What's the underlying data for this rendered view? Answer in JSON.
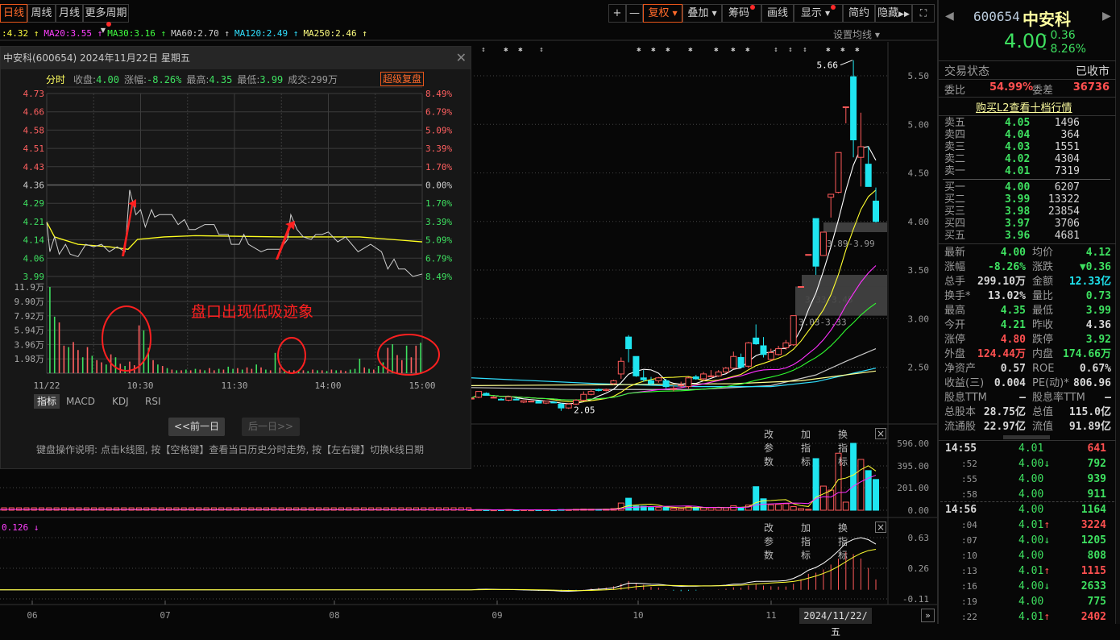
{
  "toolbar": {
    "periods": [
      "日线",
      "周线",
      "月线",
      "更多周期"
    ],
    "right": [
      "+",
      "—",
      "复权",
      "叠加",
      "筹码",
      "画线",
      "显示",
      "简约",
      "隐藏"
    ]
  },
  "ma_legend": [
    {
      "text": ":4.32",
      "color": "#ffff40"
    },
    {
      "text": "MA20:3.55",
      "color": "#ff40ff"
    },
    {
      "text": "MA30:3.16",
      "color": "#40ff40"
    },
    {
      "text": "MA60:2.70",
      "color": "#d0d0d0"
    },
    {
      "text": "MA120:2.49",
      "color": "#30e0ff"
    },
    {
      "text": "MA250:2.46",
      "color": "#ffff80"
    }
  ],
  "ma_setting": "设置均线",
  "main_chart": {
    "y_ticks": [
      5.5,
      5.0,
      4.5,
      4.0,
      3.5,
      3.0,
      2.5
    ],
    "high_label": "5.66",
    "low_label": "2.05",
    "candles": [
      [
        2.18,
        2.19,
        2.17,
        2.18
      ],
      [
        2.19,
        2.25,
        2.18,
        2.25
      ],
      [
        2.23,
        2.24,
        2.21,
        2.21
      ],
      [
        2.19,
        2.2,
        2.18,
        2.19
      ],
      [
        2.17,
        2.18,
        2.16,
        2.165
      ],
      [
        2.16,
        2.2,
        2.15,
        2.195
      ],
      [
        2.17,
        2.19,
        2.16,
        2.165
      ],
      [
        2.14,
        2.16,
        2.13,
        2.155
      ],
      [
        2.15,
        2.155,
        2.14,
        2.15
      ],
      [
        2.15,
        2.155,
        2.13,
        2.13
      ],
      [
        2.13,
        2.15,
        2.12,
        2.15
      ],
      [
        2.14,
        2.15,
        2.13,
        2.135
      ],
      [
        2.12,
        2.13,
        2.05,
        2.08
      ],
      [
        2.08,
        2.13,
        2.07,
        2.12
      ],
      [
        2.12,
        2.17,
        2.11,
        2.16
      ],
      [
        2.16,
        2.25,
        2.15,
        2.22
      ],
      [
        2.22,
        2.27,
        2.21,
        2.25
      ],
      [
        2.27,
        2.28,
        2.25,
        2.26
      ],
      [
        2.26,
        2.28,
        2.25,
        2.27
      ],
      [
        2.33,
        2.37,
        2.32,
        2.36
      ],
      [
        2.43,
        2.6,
        2.38,
        2.56
      ],
      [
        2.81,
        2.83,
        2.55,
        2.69
      ],
      [
        2.61,
        2.61,
        2.4,
        2.41
      ],
      [
        2.39,
        2.47,
        2.35,
        2.37
      ],
      [
        2.36,
        2.4,
        2.32,
        2.33
      ],
      [
        2.36,
        2.4,
        2.34,
        2.39
      ],
      [
        2.36,
        2.38,
        2.28,
        2.3
      ],
      [
        2.28,
        2.31,
        2.25,
        2.28
      ],
      [
        2.31,
        2.35,
        2.29,
        2.315
      ],
      [
        2.3,
        2.4,
        2.28,
        2.39
      ],
      [
        2.4,
        2.42,
        2.37,
        2.38
      ],
      [
        2.38,
        2.45,
        2.36,
        2.43
      ],
      [
        2.41,
        2.47,
        2.4,
        2.41
      ],
      [
        2.41,
        2.47,
        2.4,
        2.45
      ],
      [
        2.45,
        2.5,
        2.44,
        2.49
      ],
      [
        2.49,
        2.66,
        2.48,
        2.61
      ],
      [
        2.6,
        2.64,
        2.49,
        2.5
      ],
      [
        2.51,
        2.76,
        2.49,
        2.75
      ],
      [
        2.8,
        2.94,
        2.73,
        2.74
      ],
      [
        2.72,
        2.81,
        2.6,
        2.63
      ],
      [
        2.58,
        2.69,
        2.56,
        2.65
      ],
      [
        2.63,
        2.72,
        2.62,
        2.69
      ],
      [
        2.7,
        2.78,
        2.68,
        2.75
      ],
      [
        2.73,
        3.03,
        2.72,
        3.03
      ],
      [
        3.33,
        3.33,
        3.33,
        3.33
      ],
      [
        3.66,
        3.66,
        3.66,
        3.66
      ],
      [
        4.03,
        4.03,
        3.45,
        3.54
      ],
      [
        3.65,
        3.89,
        3.65,
        3.89
      ],
      [
        4.25,
        4.28,
        4.04,
        4.28
      ],
      [
        4.3,
        4.71,
        4.29,
        4.71
      ],
      [
        5.18,
        5.18,
        5.01,
        5.18
      ],
      [
        5.49,
        5.66,
        4.66,
        4.84
      ],
      [
        4.66,
        5.12,
        4.36,
        4.77
      ],
      [
        4.59,
        4.77,
        4.36,
        4.36
      ],
      [
        4.21,
        4.35,
        3.99,
        4.0
      ]
    ],
    "long_ma": [
      {
        "name": "MA60",
        "color": "#c8c8c8",
        "points": [
          [
            0,
            2.29
          ],
          [
            15,
            2.27
          ],
          [
            30,
            2.27
          ],
          [
            40,
            2.31
          ],
          [
            46,
            2.42
          ],
          [
            50,
            2.56
          ],
          [
            54,
            2.69
          ]
        ]
      },
      {
        "name": "MA120",
        "color": "#30e0ff",
        "points": [
          [
            0,
            2.39
          ],
          [
            17,
            2.33
          ],
          [
            30,
            2.3
          ],
          [
            40,
            2.3
          ],
          [
            46,
            2.35
          ],
          [
            50,
            2.42
          ],
          [
            54,
            2.49
          ]
        ]
      },
      {
        "name": "MA250",
        "color": "#ffff90",
        "points": [
          [
            0,
            2.31
          ],
          [
            20,
            2.32
          ],
          [
            35,
            2.33
          ],
          [
            44,
            2.36
          ],
          [
            50,
            2.42
          ],
          [
            54,
            2.46
          ]
        ]
      }
    ],
    "zones": [
      {
        "label": "3.89-3.99",
        "lo": 3.89,
        "hi": 3.99
      },
      {
        "label": "3.33-3.45",
        "lo": 3.33,
        "hi": 3.45
      },
      {
        "label": "3.03-3.33",
        "lo": 3.03,
        "hi": 3.33
      }
    ],
    "x_labels": [
      "06",
      "07",
      "08",
      "09",
      "10",
      "11"
    ],
    "cursor_date": "2024/11/22/五"
  },
  "volume_panel": {
    "y_ticks": [
      "596.00",
      "395.00",
      "201.00",
      "0.00"
    ],
    "max": 596,
    "values": [
      4,
      5,
      4,
      3,
      4,
      5,
      3,
      4,
      3,
      4,
      4,
      3,
      6,
      5,
      8,
      10,
      9,
      8,
      10,
      14,
      64,
      107,
      38,
      36,
      24,
      24,
      26,
      18,
      16,
      32,
      26,
      24,
      22,
      24,
      22,
      40,
      24,
      46,
      210,
      102,
      48,
      52,
      58,
      32,
      14,
      8,
      460,
      215,
      179,
      508,
      72,
      596,
      453,
      353,
      274
    ]
  },
  "macd_panel": {
    "y_ticks": [
      "0.63",
      "0.26",
      "-0.11"
    ],
    "legend": "0.126 ↓"
  },
  "panel_tools": [
    "改参数",
    "加指标",
    "换指标"
  ],
  "popup": {
    "title": "中安科(600654) 2024年11月22日 星期五",
    "tab": "分时",
    "stats": [
      {
        "k": "收盘:",
        "v": "4.00"
      },
      {
        "k": "涨幅:",
        "v": "-8.26%"
      },
      {
        "k": "最高:",
        "v": "4.35"
      },
      {
        "k": "最低:",
        "v": "3.99"
      },
      {
        "k": "成交:",
        "v": "299万",
        "plain": true
      }
    ],
    "review_btn": "超级复盘",
    "price_ticks": [
      "4.73",
      "4.66",
      "4.58",
      "4.51",
      "4.43",
      "4.36",
      "4.29",
      "4.21",
      "4.14",
      "4.06",
      "3.99"
    ],
    "pct_ticks": [
      "8.49%",
      "6.79%",
      "5.09%",
      "3.39%",
      "1.70%",
      "0.00%",
      "1.70%",
      "3.39%",
      "5.09%",
      "6.79%",
      "8.49%"
    ],
    "vol_ticks": [
      "11.9万",
      "9.90万",
      "7.92万",
      "5.94万",
      "3.96万",
      "1.98万"
    ],
    "time_labels": [
      "11/22",
      "10:30",
      "11:30",
      "14:00",
      "15:00"
    ],
    "prev_close": 4.36,
    "price": [
      [
        0,
        4.21
      ],
      [
        2,
        4.09
      ],
      [
        5,
        4.15
      ],
      [
        8,
        4.08
      ],
      [
        12,
        4.12
      ],
      [
        15,
        4.08
      ],
      [
        20,
        4.07
      ],
      [
        25,
        4.12
      ],
      [
        30,
        4.11
      ],
      [
        35,
        4.12
      ],
      [
        40,
        4.09
      ],
      [
        45,
        4.11
      ],
      [
        50,
        4.09
      ],
      [
        53,
        4.34
      ],
      [
        55,
        4.29
      ],
      [
        57,
        4.24
      ],
      [
        60,
        4.26
      ],
      [
        63,
        4.19
      ],
      [
        67,
        4.26
      ],
      [
        69,
        4.23
      ],
      [
        72,
        4.24
      ],
      [
        80,
        4.24
      ],
      [
        84,
        4.2
      ],
      [
        88,
        4.22
      ],
      [
        91,
        4.18
      ],
      [
        95,
        4.18
      ],
      [
        101,
        4.2
      ],
      [
        107,
        4.2
      ],
      [
        110,
        4.16
      ],
      [
        116,
        4.16
      ],
      [
        118,
        4.12
      ],
      [
        123,
        4.12
      ],
      [
        126,
        4.16
      ],
      [
        129,
        4.12
      ],
      [
        137,
        4.09
      ],
      [
        141,
        4.1
      ],
      [
        149,
        4.1
      ],
      [
        154,
        4.14
      ],
      [
        156,
        4.24
      ],
      [
        160,
        4.18
      ],
      [
        164,
        4.15
      ],
      [
        169,
        4.14
      ],
      [
        172,
        4.16
      ],
      [
        176,
        4.16
      ],
      [
        180,
        4.17
      ],
      [
        186,
        4.13
      ],
      [
        191,
        4.15
      ],
      [
        199,
        4.09
      ],
      [
        207,
        4.12
      ],
      [
        214,
        4.09
      ],
      [
        218,
        4.02
      ],
      [
        222,
        4.06
      ],
      [
        225,
        4.02
      ],
      [
        229,
        4.02
      ],
      [
        234,
        3.99
      ],
      [
        240,
        4.0
      ]
    ],
    "avg": [
      [
        0,
        4.21
      ],
      [
        5,
        4.15
      ],
      [
        20,
        4.12
      ],
      [
        40,
        4.11
      ],
      [
        52,
        4.1
      ],
      [
        58,
        4.14
      ],
      [
        75,
        4.15
      ],
      [
        95,
        4.155
      ],
      [
        150,
        4.15
      ],
      [
        200,
        4.15
      ],
      [
        220,
        4.14
      ],
      [
        240,
        4.13
      ]
    ],
    "volume": [
      11.9,
      7.8,
      7.0,
      3.8,
      3.6,
      4.3,
      3.2,
      2.2,
      3.6,
      2.4,
      1.8,
      1.5,
      1.2,
      2.6,
      2.2,
      1.3,
      1.0,
      1.6,
      1.1,
      6.6,
      5.9,
      3.5,
      1.8,
      1.2,
      1.0,
      0.7,
      0.5,
      0.4,
      0.4,
      0.5,
      0.4,
      0.6,
      0.5,
      0.4,
      0.7,
      0.4,
      0.6,
      0.5,
      0.9,
      0.6,
      0.7,
      0.5,
      0.8,
      0.6,
      1.2,
      0.8,
      0.5,
      0.4,
      2.8,
      0.8,
      0.5,
      0.4,
      0.4,
      0.3,
      0.4,
      0.3,
      0.5,
      0.4,
      0.4,
      0.3,
      0.5,
      0.4,
      0.4,
      0.3,
      0.5,
      0.6,
      2.0,
      0.8,
      0.6,
      0.5,
      1.0,
      1.5,
      3.5,
      4.0,
      2.5,
      1.8,
      3.8,
      2.2,
      3.8,
      4.2
    ],
    "vol_colors": "ggrrgrrgrgrrgrgrgrrrggrgrgrgrgrgrgrrgrggrgrrgrgrgrgrrgrgrgrgrgrrgggrgrggrgrrgrr",
    "annotation": "盘口出现低吸迹象",
    "indicator_tabs": [
      "指标",
      "MACD",
      "KDJ",
      "RSI"
    ],
    "prev_day": "<<前一日",
    "next_day": "后一日>>",
    "help": "键盘操作说明: 点击k线图, 按【空格键】查看当日历史分时走势, 按【左右键】切换k线日期"
  },
  "quote": {
    "code": "600654",
    "name": "中安科",
    "price": "4.00",
    "change": "- 0.36",
    "pct": "- 8.26%",
    "status_label": "交易状态",
    "status": "已收市",
    "wb_label": "委比",
    "wb": "54.99%",
    "wc_label": "委差",
    "wc": "36736",
    "l2_link": "购买L2查看十档行情",
    "asks": [
      {
        "l": "卖五",
        "p": "4.05",
        "v": "1496"
      },
      {
        "l": "卖四",
        "p": "4.04",
        "v": "364"
      },
      {
        "l": "卖三",
        "p": "4.03",
        "v": "1551"
      },
      {
        "l": "卖二",
        "p": "4.02",
        "v": "4304"
      },
      {
        "l": "卖一",
        "p": "4.01",
        "v": "7319"
      }
    ],
    "bids": [
      {
        "l": "买一",
        "p": "4.00",
        "v": "6207"
      },
      {
        "l": "买二",
        "p": "3.99",
        "v": "13322"
      },
      {
        "l": "买三",
        "p": "3.98",
        "v": "23854"
      },
      {
        "l": "买四",
        "p": "3.97",
        "v": "3706"
      },
      {
        "l": "买五",
        "p": "3.96",
        "v": "4681"
      }
    ],
    "stats": [
      [
        "最新",
        "4.00",
        "g",
        "均价",
        "4.12",
        "g"
      ],
      [
        "涨幅",
        "-8.26%",
        "g",
        "涨跌",
        "▼0.36",
        "g"
      ],
      [
        "总手",
        "299.10万",
        "w",
        "金额",
        "12.33亿",
        "c"
      ],
      [
        "换手*",
        "13.02%",
        "w",
        "量比",
        "0.73",
        "g"
      ],
      [
        "最高",
        "4.35",
        "g",
        "最低",
        "3.99",
        "g"
      ],
      [
        "今开",
        "4.21",
        "g",
        "昨收",
        "4.36",
        "w"
      ],
      [
        "涨停",
        "4.80",
        "r",
        "跌停",
        "3.92",
        "g"
      ],
      [
        "外盘",
        "124.44万",
        "r",
        "内盘",
        "174.66万",
        "g"
      ],
      [
        "净资产",
        "0.57",
        "w",
        "ROE",
        "0.67%",
        "w"
      ],
      [
        "收益(三)",
        "0.004",
        "w",
        "PE(动)*",
        "806.96",
        "w"
      ],
      [
        "股息TTM",
        "—",
        "w",
        "股息率TTM",
        "—",
        "w"
      ],
      [
        "总股本",
        "28.75亿",
        "w",
        "总值",
        "115.0亿",
        "w"
      ],
      [
        "流通股",
        "22.97亿",
        "w",
        "流值",
        "91.89亿",
        "w"
      ]
    ],
    "ticks": [
      {
        "t": "14:55",
        "p": "4.01",
        "a": "",
        "v": "641",
        "vc": "r",
        "major": true
      },
      {
        "t": ":52",
        "p": "4.00",
        "a": "down",
        "v": "792",
        "vc": "g"
      },
      {
        "t": ":55",
        "p": "4.00",
        "a": "",
        "v": "939",
        "vc": "g"
      },
      {
        "t": ":58",
        "p": "4.00",
        "a": "",
        "v": "911",
        "vc": "g"
      },
      {
        "t": "14:56",
        "p": "4.00",
        "a": "",
        "v": "1164",
        "vc": "g",
        "major": true
      },
      {
        "t": ":04",
        "p": "4.01",
        "a": "up",
        "v": "3224",
        "vc": "r"
      },
      {
        "t": ":07",
        "p": "4.00",
        "a": "down",
        "v": "1205",
        "vc": "g"
      },
      {
        "t": ":10",
        "p": "4.00",
        "a": "",
        "v": "808",
        "vc": "g"
      },
      {
        "t": ":13",
        "p": "4.01",
        "a": "up",
        "v": "1115",
        "vc": "r"
      },
      {
        "t": ":16",
        "p": "4.00",
        "a": "down",
        "v": "2633",
        "vc": "g"
      },
      {
        "t": ":19",
        "p": "4.00",
        "a": "",
        "v": "775",
        "vc": "g"
      },
      {
        "t": ":22",
        "p": "4.01",
        "a": "up",
        "v": "2402",
        "vc": "r"
      }
    ]
  },
  "colors": {
    "up": "#ff5a5a",
    "down": "#1fe5f0",
    "accent": "#ff6a2a"
  }
}
